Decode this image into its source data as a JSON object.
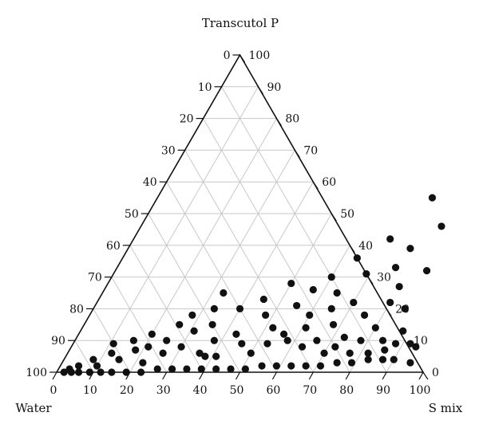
{
  "chart_data": {
    "type": "scatter",
    "subtype": "ternary",
    "vertex_labels": {
      "top": "Transcutol P",
      "left": "Water",
      "right": "S mix"
    },
    "axis_ticks": {
      "left_edge": [
        "0",
        "10",
        "20",
        "30",
        "40",
        "50",
        "60",
        "70",
        "80",
        "90",
        "100"
      ],
      "right_edge": [
        "100",
        "90",
        "80",
        "70",
        "60",
        "50",
        "40",
        "30",
        "20",
        "10",
        "0"
      ],
      "bottom_edge": [
        "0",
        "10",
        "20",
        "30",
        "40",
        "50",
        "60",
        "70",
        "80",
        "90",
        "100"
      ]
    },
    "grid": true,
    "points": [
      {
        "smix": 90,
        "transcutol": 60
      },
      {
        "smix": 75,
        "transcutol": 55
      },
      {
        "smix": 82,
        "transcutol": 46
      },
      {
        "smix": 77,
        "transcutol": 39
      },
      {
        "smix": 70,
        "transcutol": 42
      },
      {
        "smix": 85,
        "transcutol": 32
      },
      {
        "smix": 80,
        "transcutol": 27
      },
      {
        "smix": 76,
        "transcutol": 33
      },
      {
        "smix": 64,
        "transcutol": 36
      },
      {
        "smix": 69,
        "transcutol": 31
      },
      {
        "smix": 60,
        "transcutol": 30
      },
      {
        "smix": 57,
        "transcutol": 26
      },
      {
        "smix": 64,
        "transcutol": 25
      },
      {
        "smix": 50,
        "transcutol": 28
      },
      {
        "smix": 80,
        "transcutol": 22
      },
      {
        "smix": 85,
        "transcutol": 20
      },
      {
        "smix": 88,
        "transcutol": 13
      },
      {
        "smix": 92,
        "transcutol": 9
      },
      {
        "smix": 90,
        "transcutol": 4
      },
      {
        "smix": 95,
        "transcutol": 3
      },
      {
        "smix": 94,
        "transcutol": 8
      },
      {
        "smix": 86,
        "transcutol": 7
      },
      {
        "smix": 80,
        "transcutol": 14
      },
      {
        "smix": 75,
        "transcutol": 18
      },
      {
        "smix": 73,
        "transcutol": 11
      },
      {
        "smix": 70,
        "transcutol": 22
      },
      {
        "smix": 68,
        "transcutol": 15
      },
      {
        "smix": 65,
        "transcutol": 20
      },
      {
        "smix": 63,
        "transcutol": 8
      },
      {
        "smix": 60,
        "transcutol": 18
      },
      {
        "smix": 58,
        "transcutol": 10
      },
      {
        "smix": 55,
        "transcutol": 21
      },
      {
        "smix": 52,
        "transcutol": 14
      },
      {
        "smix": 50,
        "transcutol": 6
      },
      {
        "smix": 48,
        "transcutol": 18
      },
      {
        "smix": 45,
        "transcutol": 23
      },
      {
        "smix": 43,
        "transcutol": 12
      },
      {
        "smix": 40,
        "transcutol": 20
      },
      {
        "smix": 38,
        "transcutol": 5
      },
      {
        "smix": 35,
        "transcutol": 15
      },
      {
        "smix": 33,
        "transcutol": 25
      },
      {
        "smix": 30,
        "transcutol": 8
      },
      {
        "smix": 28,
        "transcutol": 18
      },
      {
        "smix": 25,
        "transcutol": 10
      },
      {
        "smix": 22,
        "transcutol": 3
      },
      {
        "smix": 20,
        "transcutol": 12
      },
      {
        "smix": 18,
        "transcutol": 7
      },
      {
        "smix": 15,
        "transcutol": 4
      },
      {
        "smix": 12,
        "transcutol": 6
      },
      {
        "smix": 10,
        "transcutol": 2
      },
      {
        "smix": 8,
        "transcutol": 4
      },
      {
        "smix": 5,
        "transcutol": 2
      },
      {
        "smix": 3,
        "transcutol": 1
      },
      {
        "smix": 2,
        "transcutol": 0
      },
      {
        "smix": 4,
        "transcutol": 0
      },
      {
        "smix": 6,
        "transcutol": 0
      },
      {
        "smix": 9,
        "transcutol": 0
      },
      {
        "smix": 12,
        "transcutol": 0
      },
      {
        "smix": 15,
        "transcutol": 0
      },
      {
        "smix": 19,
        "transcutol": 0
      },
      {
        "smix": 23,
        "transcutol": 0
      },
      {
        "smix": 27,
        "transcutol": 1
      },
      {
        "smix": 31,
        "transcutol": 1
      },
      {
        "smix": 35,
        "transcutol": 1
      },
      {
        "smix": 39,
        "transcutol": 1
      },
      {
        "smix": 43,
        "transcutol": 1
      },
      {
        "smix": 47,
        "transcutol": 1
      },
      {
        "smix": 51,
        "transcutol": 1
      },
      {
        "smix": 55,
        "transcutol": 2
      },
      {
        "smix": 59,
        "transcutol": 2
      },
      {
        "smix": 63,
        "transcutol": 2
      },
      {
        "smix": 67,
        "transcutol": 2
      },
      {
        "smix": 71,
        "transcutol": 2
      },
      {
        "smix": 75,
        "transcutol": 3
      },
      {
        "smix": 79,
        "transcutol": 3
      },
      {
        "smix": 83,
        "transcutol": 4
      },
      {
        "smix": 87,
        "transcutol": 4
      },
      {
        "smix": 70,
        "transcutol": 6
      },
      {
        "smix": 66,
        "transcutol": 10
      },
      {
        "smix": 56,
        "transcutol": 12
      },
      {
        "smix": 46,
        "transcutol": 9
      },
      {
        "smix": 41,
        "transcutol": 5
      },
      {
        "smix": 36,
        "transcutol": 6
      },
      {
        "smix": 26,
        "transcutol": 6
      },
      {
        "smix": 21,
        "transcutol": 8
      },
      {
        "smix": 16,
        "transcutol": 10
      },
      {
        "smix": 11,
        "transcutol": 9
      },
      {
        "smix": 31,
        "transcutol": 13
      },
      {
        "smix": 26,
        "transcutol": 15
      },
      {
        "smix": 38,
        "transcutol": 10
      },
      {
        "smix": 33,
        "transcutol": 20
      },
      {
        "smix": 53,
        "transcutol": 9
      },
      {
        "smix": 61,
        "transcutol": 14
      },
      {
        "smix": 72,
        "transcutol": 8
      },
      {
        "smix": 78,
        "transcutol": 10
      },
      {
        "smix": 84,
        "transcutol": 10
      },
      {
        "smix": 77,
        "transcutol": 6
      },
      {
        "smix": 82,
        "transcutol": 6
      },
      {
        "smix": 88,
        "transcutol": 9
      }
    ]
  }
}
